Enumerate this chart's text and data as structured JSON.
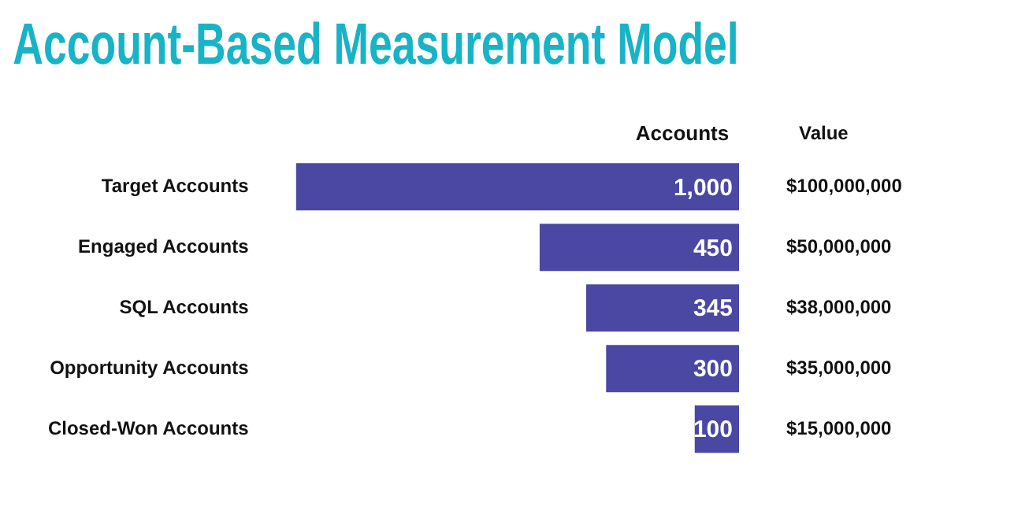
{
  "chart_data": {
    "type": "bar",
    "orientation": "horizontal",
    "title": "Account-Based Measurement Model",
    "xlabel": "Accounts",
    "categories": [
      "Target Accounts",
      "Engaged Accounts",
      "SQL Accounts",
      "Opportunity Accounts",
      "Closed-Won Accounts"
    ],
    "values": [
      1000,
      450,
      345,
      300,
      100
    ],
    "value_labels": [
      "1,000",
      "450",
      "345",
      "300",
      "100"
    ],
    "color": "#4b48a4",
    "tick_labels": "y",
    "annotations": [
      "Value",
      "$100,000,000",
      "$50,000,000",
      "$38,000,000",
      "$35,000,000",
      "$15,000,000"
    ]
  }
}
